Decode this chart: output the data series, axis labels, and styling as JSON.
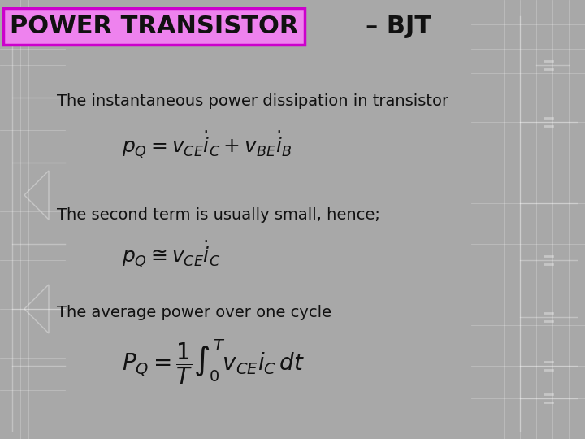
{
  "background_color": "#a8a8a8",
  "title_text": "POWER TRANSISTOR",
  "title_suffix": "– BJT",
  "title_box_facecolor": "#ee82ee",
  "title_box_edgecolor": "#cc00cc",
  "title_fontsize": 22,
  "title_suffix_fontsize": 22,
  "text1": "The instantaneous power dissipation in transistor",
  "text2": "The second term is usually small, hence;",
  "text3": "The average power over one cycle",
  "eq1": "$p_Q = v_{CE}\\dot{i}_C + v_{BE}\\dot{i}_B$",
  "eq2": "$p_Q \\cong v_{CE}\\dot{i}_C$",
  "eq3": "$P_Q = \\dfrac{1}{T}\\int_0^T v_{CE}i_C\\,dt$",
  "text_fontsize": 14,
  "eq_fontsize": 18,
  "eq3_fontsize": 20,
  "text_color": "#111111",
  "eq_color": "#111111",
  "circuit_alpha": 0.35,
  "fig_width": 7.2,
  "fig_height": 5.4,
  "dpi": 100
}
